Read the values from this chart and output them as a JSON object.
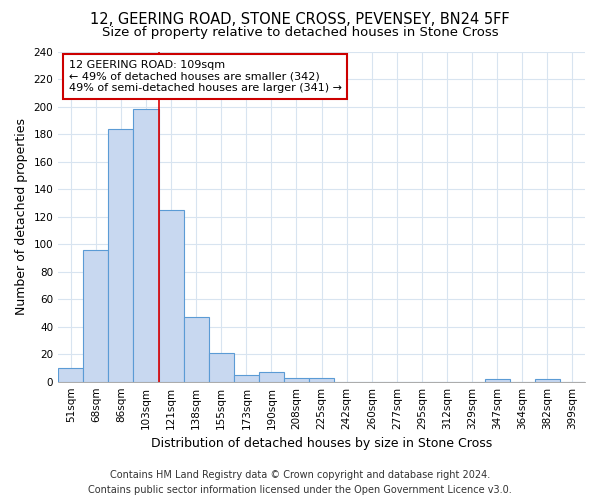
{
  "title": "12, GEERING ROAD, STONE CROSS, PEVENSEY, BN24 5FF",
  "subtitle": "Size of property relative to detached houses in Stone Cross",
  "xlabel": "Distribution of detached houses by size in Stone Cross",
  "ylabel": "Number of detached properties",
  "footer_line1": "Contains HM Land Registry data © Crown copyright and database right 2024.",
  "footer_line2": "Contains public sector information licensed under the Open Government Licence v3.0.",
  "bar_labels": [
    "51sqm",
    "68sqm",
    "86sqm",
    "103sqm",
    "121sqm",
    "138sqm",
    "155sqm",
    "173sqm",
    "190sqm",
    "208sqm",
    "225sqm",
    "242sqm",
    "260sqm",
    "277sqm",
    "295sqm",
    "312sqm",
    "329sqm",
    "347sqm",
    "364sqm",
    "382sqm",
    "399sqm"
  ],
  "bar_values": [
    10,
    96,
    184,
    198,
    125,
    47,
    21,
    5,
    7,
    3,
    3,
    0,
    0,
    0,
    0,
    0,
    0,
    2,
    0,
    2,
    0
  ],
  "bar_color": "#c8d8f0",
  "bar_edge_color": "#5b9bd5",
  "annotation_box_text": "12 GEERING ROAD: 109sqm\n← 49% of detached houses are smaller (342)\n49% of semi-detached houses are larger (341) →",
  "red_line_color": "#dd0000",
  "annotation_box_edge_color": "#cc0000",
  "ylim": [
    0,
    240
  ],
  "yticks": [
    0,
    20,
    40,
    60,
    80,
    100,
    120,
    140,
    160,
    180,
    200,
    220,
    240
  ],
  "background_color": "#ffffff",
  "grid_color": "#d8e4f0",
  "title_fontsize": 10.5,
  "subtitle_fontsize": 9.5,
  "axis_label_fontsize": 9,
  "tick_fontsize": 7.5,
  "annotation_fontsize": 8,
  "footer_fontsize": 7
}
